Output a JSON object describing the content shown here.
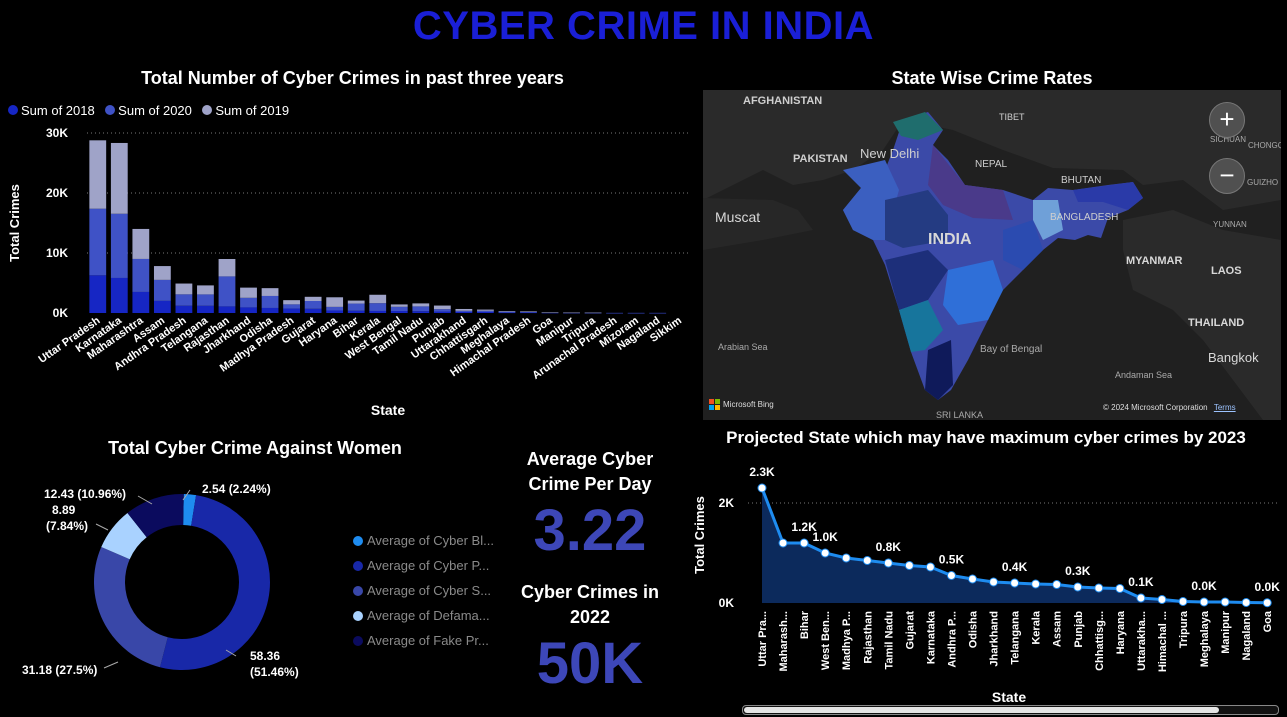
{
  "page": {
    "title": "CYBER CRIME IN INDIA"
  },
  "colors": {
    "s2018": "#1626c4",
    "s2020": "#3f52c6",
    "s2019": "#9fa3c8",
    "title": "#1a1fd6",
    "kpi": "#3d47b8"
  },
  "bar_chart": {
    "title": "Total Number of Cyber Crimes in past three years",
    "legend": [
      "Sum of 2018",
      "Sum of 2020",
      "Sum of 2019"
    ],
    "xlabel": "State",
    "ylabel": "Total Crimes",
    "yticks": [
      "0K",
      "10K",
      "20K",
      "30K"
    ]
  },
  "map": {
    "title": "State Wise Crime Rates",
    "labels": {
      "afghanistan": "AFGHANISTAN",
      "tibet": "TIBET",
      "pakistan": "PAKISTAN",
      "new_delhi": "New Delhi",
      "nepal": "NEPAL",
      "bhutan": "BHUTAN",
      "bangladesh": "BANGLADESH",
      "india": "INDIA",
      "muscat": "Muscat",
      "myanmar": "MYANMAR",
      "laos": "LAOS",
      "thailand": "THAILAND",
      "bangkok": "Bangkok",
      "arabian_sea": "Arabian Sea",
      "bay_of_bengal": "Bay of Bengal",
      "andaman_sea": "Andaman Sea",
      "sri_lanka": "SRI LANKA",
      "sichuan": "SICHUAN",
      "chongq": "CHONGQ",
      "guizho": "GUIZHO",
      "yunnan": "YUNNAN"
    },
    "bing": "Microsoft Bing",
    "copyright": "© 2024 Microsoft Corporation",
    "terms": "Terms",
    "zoom_in": "+",
    "zoom_out": "−"
  },
  "donut": {
    "title": "Total Cyber Crime Against Women",
    "legend": [
      "Average of Cyber Bl...",
      "Average of Cyber P...",
      "Average of Cyber S...",
      "Average of Defama...",
      "Average of Fake Pr..."
    ],
    "labels": [
      "2.54 (2.24%)",
      "58.36",
      "(51.46%)",
      "31.18 (27.5%)",
      "8.89",
      "(7.84%)",
      "12.43 (10.96%)"
    ]
  },
  "kpi": {
    "avg_label_1": "Average Cyber",
    "avg_label_2": "Crime Per Day",
    "avg_value": "3.22",
    "y2022_label_1": "Cyber Crimes in",
    "y2022_label_2": "2022",
    "y2022_value": "50K"
  },
  "line_chart": {
    "title": "Projected State which may have maximum cyber crimes by 2023",
    "xlabel": "State",
    "ylabel": "Total Crimes",
    "yticks": [
      "0K",
      "2K"
    ]
  },
  "chart_data": [
    {
      "type": "bar",
      "stacked": true,
      "title": "Total Number of Cyber Crimes in past three years",
      "xlabel": "State",
      "ylabel": "Total Crimes",
      "ylim": [
        0,
        30000
      ],
      "legend_position": "top-left",
      "categories": [
        "Uttar Pradesh",
        "Karnataka",
        "Maharashtra",
        "Assam",
        "Andhra Pradesh",
        "Telangana",
        "Rajasthan",
        "Jharkhand",
        "Odisha",
        "Madhya Pradesh",
        "Gujarat",
        "Haryana",
        "Bihar",
        "Kerala",
        "West Bengal",
        "Tamil Nadu",
        "Punjab",
        "Uttarakhand",
        "Chhattisgarh",
        "Meghalaya",
        "Himachal Pradesh",
        "Goa",
        "Manipur",
        "Tripura",
        "Arunachal Pradesh",
        "Mizoram",
        "Nagaland",
        "Sikkim"
      ],
      "series": [
        {
          "name": "Sum of 2018",
          "values": [
            6280,
            5840,
            3510,
            2020,
            1210,
            1200,
            1100,
            930,
            840,
            740,
            700,
            420,
            370,
            340,
            330,
            300,
            240,
            170,
            170,
            70,
            70,
            30,
            30,
            20,
            10,
            10,
            10,
            0
          ]
        },
        {
          "name": "Sum of 2020",
          "values": [
            11100,
            10700,
            5500,
            3500,
            1900,
            1900,
            5000,
            1600,
            2000,
            700,
            1300,
            600,
            1200,
            1300,
            700,
            800,
            400,
            200,
            200,
            150,
            100,
            50,
            20,
            30,
            10,
            10,
            10,
            0
          ]
        },
        {
          "name": "Sum of 2019",
          "values": [
            11400,
            11800,
            5000,
            2300,
            1800,
            1500,
            2900,
            1700,
            1300,
            700,
            700,
            1600,
            500,
            1400,
            400,
            500,
            600,
            300,
            200,
            100,
            100,
            20,
            20,
            10,
            0,
            0,
            0,
            0
          ]
        }
      ]
    },
    {
      "type": "pie",
      "donut": true,
      "title": "Total Cyber Crime Against Women",
      "categories": [
        "Average of Cyber Bl...",
        "Average of Cyber P...",
        "Average of Cyber S...",
        "Average of Defama...",
        "Average of Fake Pr..."
      ],
      "values": [
        2.54,
        58.36,
        31.18,
        8.89,
        12.43
      ],
      "percent": [
        2.24,
        51.46,
        27.5,
        7.84,
        10.96
      ],
      "colors": [
        "#1e8cf0",
        "#1828a8",
        "#3947a8",
        "#a9d2ff",
        "#0b0b5e"
      ]
    },
    {
      "type": "area",
      "title": "Projected State which may have maximum cyber crimes by 2023",
      "xlabel": "State",
      "ylabel": "Total Crimes",
      "categories": [
        "Uttar Pra...",
        "Maharash...",
        "Bihar",
        "West Ben...",
        "Madhya P...",
        "Rajasthan",
        "Tamil Nadu",
        "Gujarat",
        "Karnataka",
        "Andhra P...",
        "Odisha",
        "Jharkhand",
        "Telangana",
        "Kerala",
        "Assam",
        "Punjab",
        "Chhattisg...",
        "Haryana",
        "Uttarakha...",
        "Himachal ...",
        "Tripura",
        "Meghalaya",
        "Manipur",
        "Nagaland",
        "Goa"
      ],
      "values": [
        2300,
        1200,
        1200,
        1000,
        900,
        850,
        800,
        750,
        720,
        550,
        480,
        420,
        400,
        380,
        370,
        320,
        300,
        290,
        100,
        70,
        30,
        20,
        20,
        10,
        5
      ],
      "data_labels": {
        "0": "2.3K",
        "2": "1.2K",
        "3": "1.0K",
        "6": "0.8K",
        "9": "0.5K",
        "12": "0.4K",
        "15": "0.3K",
        "18": "0.1K",
        "21": "0.0K",
        "24": "0.0K"
      },
      "ylim": [
        0,
        2500
      ]
    }
  ]
}
